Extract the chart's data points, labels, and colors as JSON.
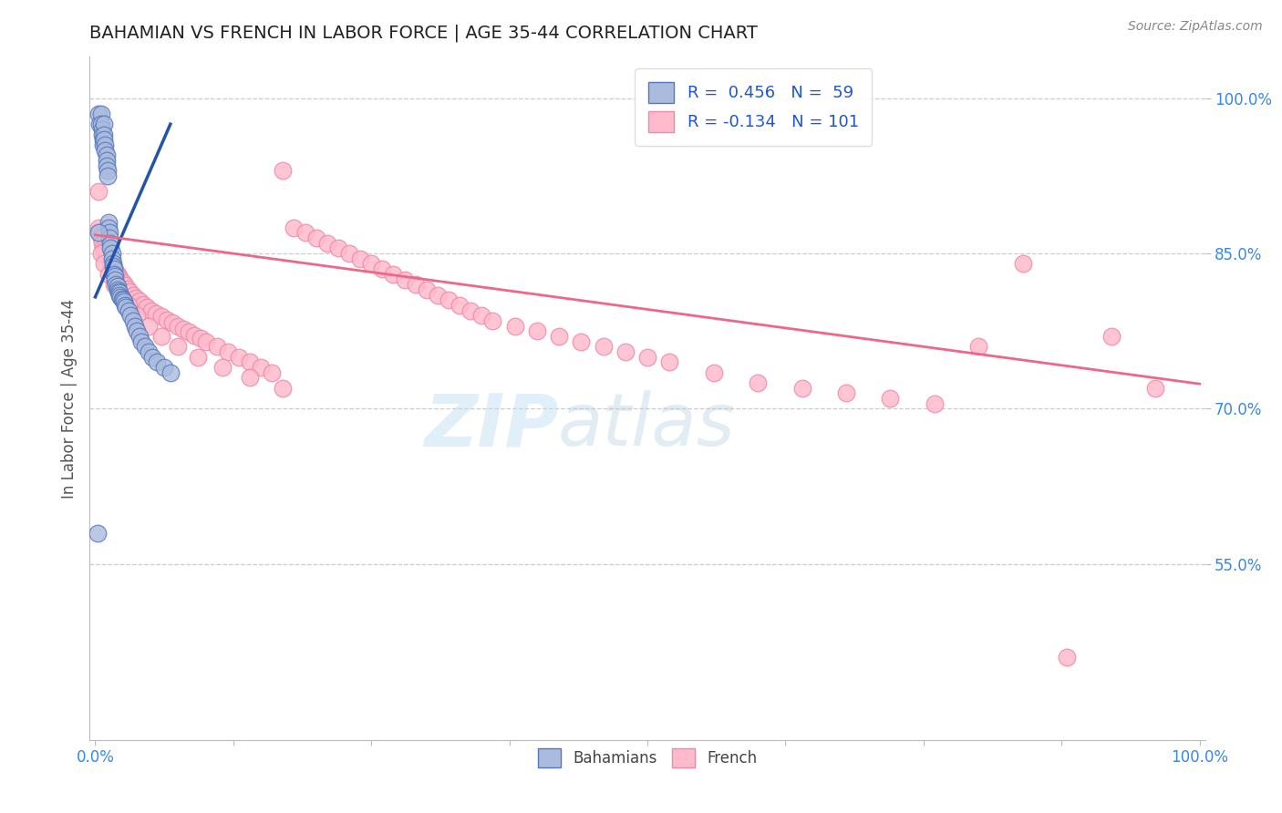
{
  "title": "BAHAMIAN VS FRENCH IN LABOR FORCE | AGE 35-44 CORRELATION CHART",
  "source_text": "Source: ZipAtlas.com",
  "ylabel": "In Labor Force | Age 35-44",
  "xlim": [
    -0.005,
    1.005
  ],
  "ylim": [
    0.38,
    1.04
  ],
  "x_ticks": [
    0.0,
    1.0
  ],
  "x_tick_labels": [
    "0.0%",
    "100.0%"
  ],
  "y_ticks": [
    0.55,
    0.7,
    0.85,
    1.0
  ],
  "y_tick_labels": [
    "55.0%",
    "70.0%",
    "85.0%",
    "100.0%"
  ],
  "bahamian_R": 0.456,
  "bahamian_N": 59,
  "french_R": -0.134,
  "french_N": 101,
  "blue_fill": "#AABBDD",
  "blue_edge": "#5577BB",
  "pink_fill": "#FFBBCC",
  "pink_edge": "#EE88AA",
  "blue_line": "#2255AA",
  "pink_line": "#EE6688",
  "background_color": "#FFFFFF",
  "grid_color": "#CCCCCC",
  "title_color": "#222222",
  "axis_label_color": "#555555",
  "tick_label_color": "#3388EE",
  "legend_color": "#2255CC",
  "watermark_zip_color": "#BBDDEE",
  "watermark_atlas_color": "#BBCCDD",
  "bahamian_x": [
    0.003,
    0.004,
    0.005,
    0.005,
    0.006,
    0.006,
    0.007,
    0.007,
    0.008,
    0.008,
    0.008,
    0.009,
    0.009,
    0.01,
    0.01,
    0.01,
    0.011,
    0.011,
    0.012,
    0.012,
    0.013,
    0.013,
    0.014,
    0.014,
    0.015,
    0.015,
    0.016,
    0.016,
    0.017,
    0.017,
    0.018,
    0.018,
    0.019,
    0.02,
    0.02,
    0.021,
    0.022,
    0.022,
    0.023,
    0.024,
    0.025,
    0.026,
    0.027,
    0.028,
    0.03,
    0.032,
    0.034,
    0.036,
    0.038,
    0.04,
    0.042,
    0.045,
    0.048,
    0.052,
    0.056,
    0.062,
    0.068,
    0.002,
    0.003
  ],
  "bahamian_y": [
    0.985,
    0.975,
    0.985,
    0.975,
    0.97,
    0.965,
    0.96,
    0.955,
    0.975,
    0.965,
    0.96,
    0.955,
    0.95,
    0.945,
    0.94,
    0.935,
    0.93,
    0.925,
    0.88,
    0.875,
    0.87,
    0.865,
    0.86,
    0.855,
    0.85,
    0.845,
    0.84,
    0.838,
    0.835,
    0.83,
    0.828,
    0.825,
    0.82,
    0.818,
    0.815,
    0.813,
    0.812,
    0.81,
    0.808,
    0.806,
    0.805,
    0.803,
    0.8,
    0.798,
    0.795,
    0.79,
    0.785,
    0.78,
    0.775,
    0.77,
    0.765,
    0.76,
    0.755,
    0.75,
    0.745,
    0.74,
    0.735,
    0.58,
    0.87
  ],
  "french_x": [
    0.003,
    0.004,
    0.005,
    0.006,
    0.007,
    0.008,
    0.009,
    0.01,
    0.011,
    0.012,
    0.013,
    0.014,
    0.015,
    0.016,
    0.017,
    0.018,
    0.019,
    0.02,
    0.021,
    0.022,
    0.023,
    0.025,
    0.027,
    0.029,
    0.031,
    0.034,
    0.037,
    0.04,
    0.043,
    0.047,
    0.051,
    0.055,
    0.06,
    0.065,
    0.07,
    0.075,
    0.08,
    0.085,
    0.09,
    0.095,
    0.1,
    0.11,
    0.12,
    0.13,
    0.14,
    0.15,
    0.16,
    0.17,
    0.18,
    0.19,
    0.2,
    0.21,
    0.22,
    0.23,
    0.24,
    0.25,
    0.26,
    0.27,
    0.28,
    0.29,
    0.3,
    0.31,
    0.32,
    0.33,
    0.34,
    0.35,
    0.36,
    0.38,
    0.4,
    0.42,
    0.44,
    0.46,
    0.48,
    0.5,
    0.52,
    0.56,
    0.6,
    0.64,
    0.68,
    0.72,
    0.76,
    0.8,
    0.84,
    0.88,
    0.92,
    0.96,
    0.003,
    0.005,
    0.008,
    0.012,
    0.017,
    0.023,
    0.03,
    0.038,
    0.048,
    0.06,
    0.075,
    0.093,
    0.115,
    0.14,
    0.17
  ],
  "french_y": [
    0.875,
    0.87,
    0.865,
    0.86,
    0.855,
    0.853,
    0.851,
    0.849,
    0.847,
    0.845,
    0.843,
    0.841,
    0.84,
    0.838,
    0.836,
    0.834,
    0.832,
    0.83,
    0.828,
    0.826,
    0.825,
    0.822,
    0.819,
    0.816,
    0.813,
    0.81,
    0.807,
    0.804,
    0.801,
    0.798,
    0.795,
    0.792,
    0.789,
    0.786,
    0.783,
    0.78,
    0.777,
    0.774,
    0.771,
    0.768,
    0.765,
    0.76,
    0.755,
    0.75,
    0.745,
    0.74,
    0.735,
    0.93,
    0.875,
    0.87,
    0.865,
    0.86,
    0.855,
    0.85,
    0.845,
    0.84,
    0.835,
    0.83,
    0.825,
    0.82,
    0.815,
    0.81,
    0.805,
    0.8,
    0.795,
    0.79,
    0.785,
    0.78,
    0.775,
    0.77,
    0.765,
    0.76,
    0.755,
    0.75,
    0.745,
    0.735,
    0.725,
    0.72,
    0.715,
    0.71,
    0.705,
    0.76,
    0.84,
    0.46,
    0.77,
    0.72,
    0.91,
    0.85,
    0.84,
    0.83,
    0.82,
    0.81,
    0.8,
    0.79,
    0.78,
    0.77,
    0.76,
    0.75,
    0.74,
    0.73,
    0.72
  ],
  "french_trend_x0": 0.0,
  "french_trend_y0": 0.868,
  "french_trend_x1": 1.0,
  "french_trend_y1": 0.724,
  "bahamian_trend_x0": 0.0,
  "bahamian_trend_y0": 0.808,
  "bahamian_trend_x1": 0.068,
  "bahamian_trend_y1": 0.975
}
